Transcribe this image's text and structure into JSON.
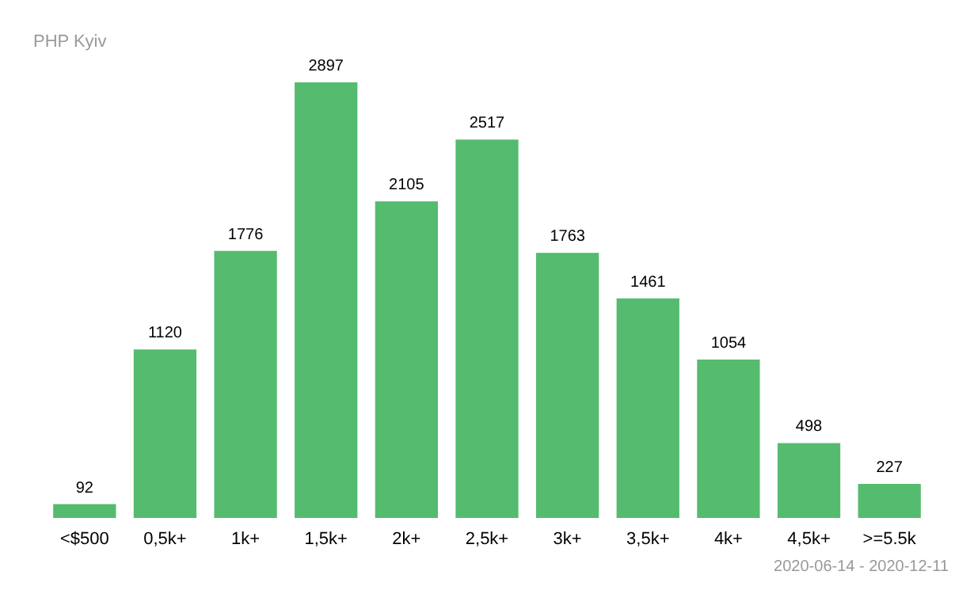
{
  "chart_data": {
    "type": "bar",
    "title": "PHP Kyiv",
    "categories": [
      "<$500",
      "0,5k+",
      "1k+",
      "1,5k+",
      "2k+",
      "2,5k+",
      "3k+",
      "3,5k+",
      "4k+",
      "4,5k+",
      ">=5.5k"
    ],
    "values": [
      92,
      1120,
      1776,
      2897,
      2105,
      2517,
      1763,
      1461,
      1054,
      498,
      227
    ],
    "color": "#55bb6f",
    "data_labels": true,
    "annotations": [
      "2020-06-14 - 2020-12-11"
    ]
  }
}
